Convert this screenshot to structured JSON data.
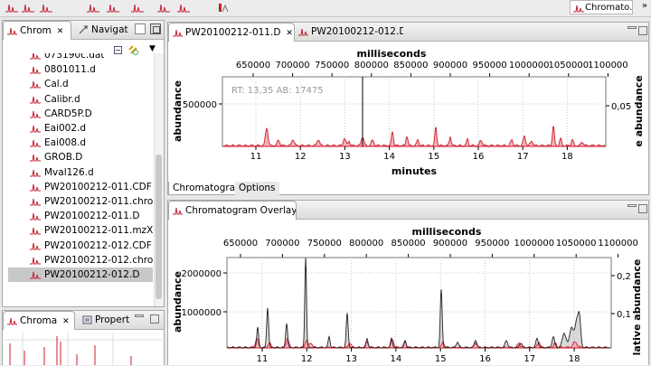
{
  "toolbar": {
    "perspective_label": "Chromato...",
    "more_label": "»"
  },
  "left_panel": {
    "tabs": [
      {
        "label": "Chrom",
        "close": "✕"
      },
      {
        "label": "Navigat",
        "close": ""
      }
    ],
    "files": [
      "073190c.dat",
      "0801011.d",
      "Cal.d",
      "Calibr.d",
      "CARD5P.D",
      "Eai002.d",
      "Eai008.d",
      "GROB.D",
      "Mval126.d",
      "PW20100212-011.CDF",
      "PW20100212-011.chrom",
      "PW20100212-011.D",
      "PW20100212-011.mzXML",
      "PW20100212-012.CDF",
      "PW20100212-012.chrom",
      "PW20100212-012.D"
    ],
    "selected_index": 15
  },
  "bottom_left_panel": {
    "tabs": [
      {
        "label": "Chroma",
        "close": "✕"
      },
      {
        "label": "Propert",
        "close": ""
      }
    ]
  },
  "editor": {
    "tabs": [
      {
        "label": "PW20100212-011.D",
        "close": "✕"
      },
      {
        "label": "PW20100212-012.D",
        "close": ""
      }
    ],
    "bottom_tabs": [
      "Chromatogram",
      "Options"
    ],
    "chart": {
      "top_axis_title": "milliseconds",
      "top_ticks": [
        "650000",
        "700000",
        "750000",
        "800000",
        "850000",
        "900000",
        "950000",
        "1000000",
        "1050000",
        "1100000"
      ],
      "bottom_axis_title": "minutes",
      "bottom_ticks": [
        "11",
        "12",
        "13",
        "14",
        "15",
        "16",
        "17",
        "18"
      ],
      "left_axis_title": "abundance",
      "left_ticks": [
        "500000"
      ],
      "right_axis_title": "e abundance",
      "right_ticks": [
        "0,05"
      ],
      "readout": "RT: 13,35 AB: 17475"
    }
  },
  "overlay": {
    "title": "Chromatogram Overlay",
    "close": "✕",
    "chart": {
      "top_axis_title": "milliseconds",
      "top_ticks": [
        "650000",
        "700000",
        "750000",
        "800000",
        "850000",
        "900000",
        "950000",
        "1000000",
        "1050000",
        "1100000"
      ],
      "bottom_ticks": [
        "11",
        "12",
        "13",
        "14",
        "15",
        "16",
        "17",
        "18"
      ],
      "left_axis_title": "abundance",
      "left_ticks": [
        "2000000",
        "1000000"
      ],
      "right_axis_title": "lative abundance",
      "right_ticks": [
        "0,2",
        "0,1"
      ]
    }
  },
  "colors": {
    "trace_red": "#d01a2a",
    "trace_fill": "#f2b3b8",
    "trace_black": "#222222",
    "grid": "#c8c8c8"
  }
}
